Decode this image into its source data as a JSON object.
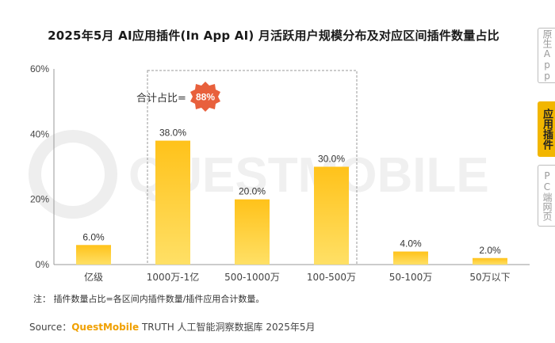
{
  "title": "2025年5月 AI应用插件(In App AI) 月活跃用户规模分布及对应区间插件数量占比",
  "side_tabs": {
    "app": "原生App",
    "plugin": "应用插件",
    "pc": "PC端网页"
  },
  "watermark": "QUESTMOBILE",
  "total": {
    "label": "合计占比=",
    "value": "88%"
  },
  "note": "注： 插件数量占比=各区间内插件数量/插件应用合计数量。",
  "source": {
    "prefix": "Source：",
    "brand": "QuestMobile",
    "rest": " TRUTH 人工智能洞察数据库 2025年5月"
  },
  "colors": {
    "bar_top": "#ffc21a",
    "bar_bottom": "#ffe066",
    "badge": "#e8603c",
    "axis": "#999999"
  },
  "chart_data": {
    "type": "bar",
    "categories": [
      "亿级",
      "1000万-1亿",
      "500-1000万",
      "100-500万",
      "50-100万",
      "50万以下"
    ],
    "values": [
      6.0,
      38.0,
      20.0,
      30.0,
      4.0,
      2.0
    ],
    "value_labels": [
      "6.0%",
      "38.0%",
      "20.0%",
      "30.0%",
      "4.0%",
      "2.0%"
    ],
    "y_ticks": [
      "0%",
      "20%",
      "40%",
      "60%"
    ],
    "ylim": [
      0,
      60
    ],
    "grid": false,
    "highlight_group": [
      "1000万-1亿",
      "500-1000万",
      "100-500万"
    ]
  }
}
